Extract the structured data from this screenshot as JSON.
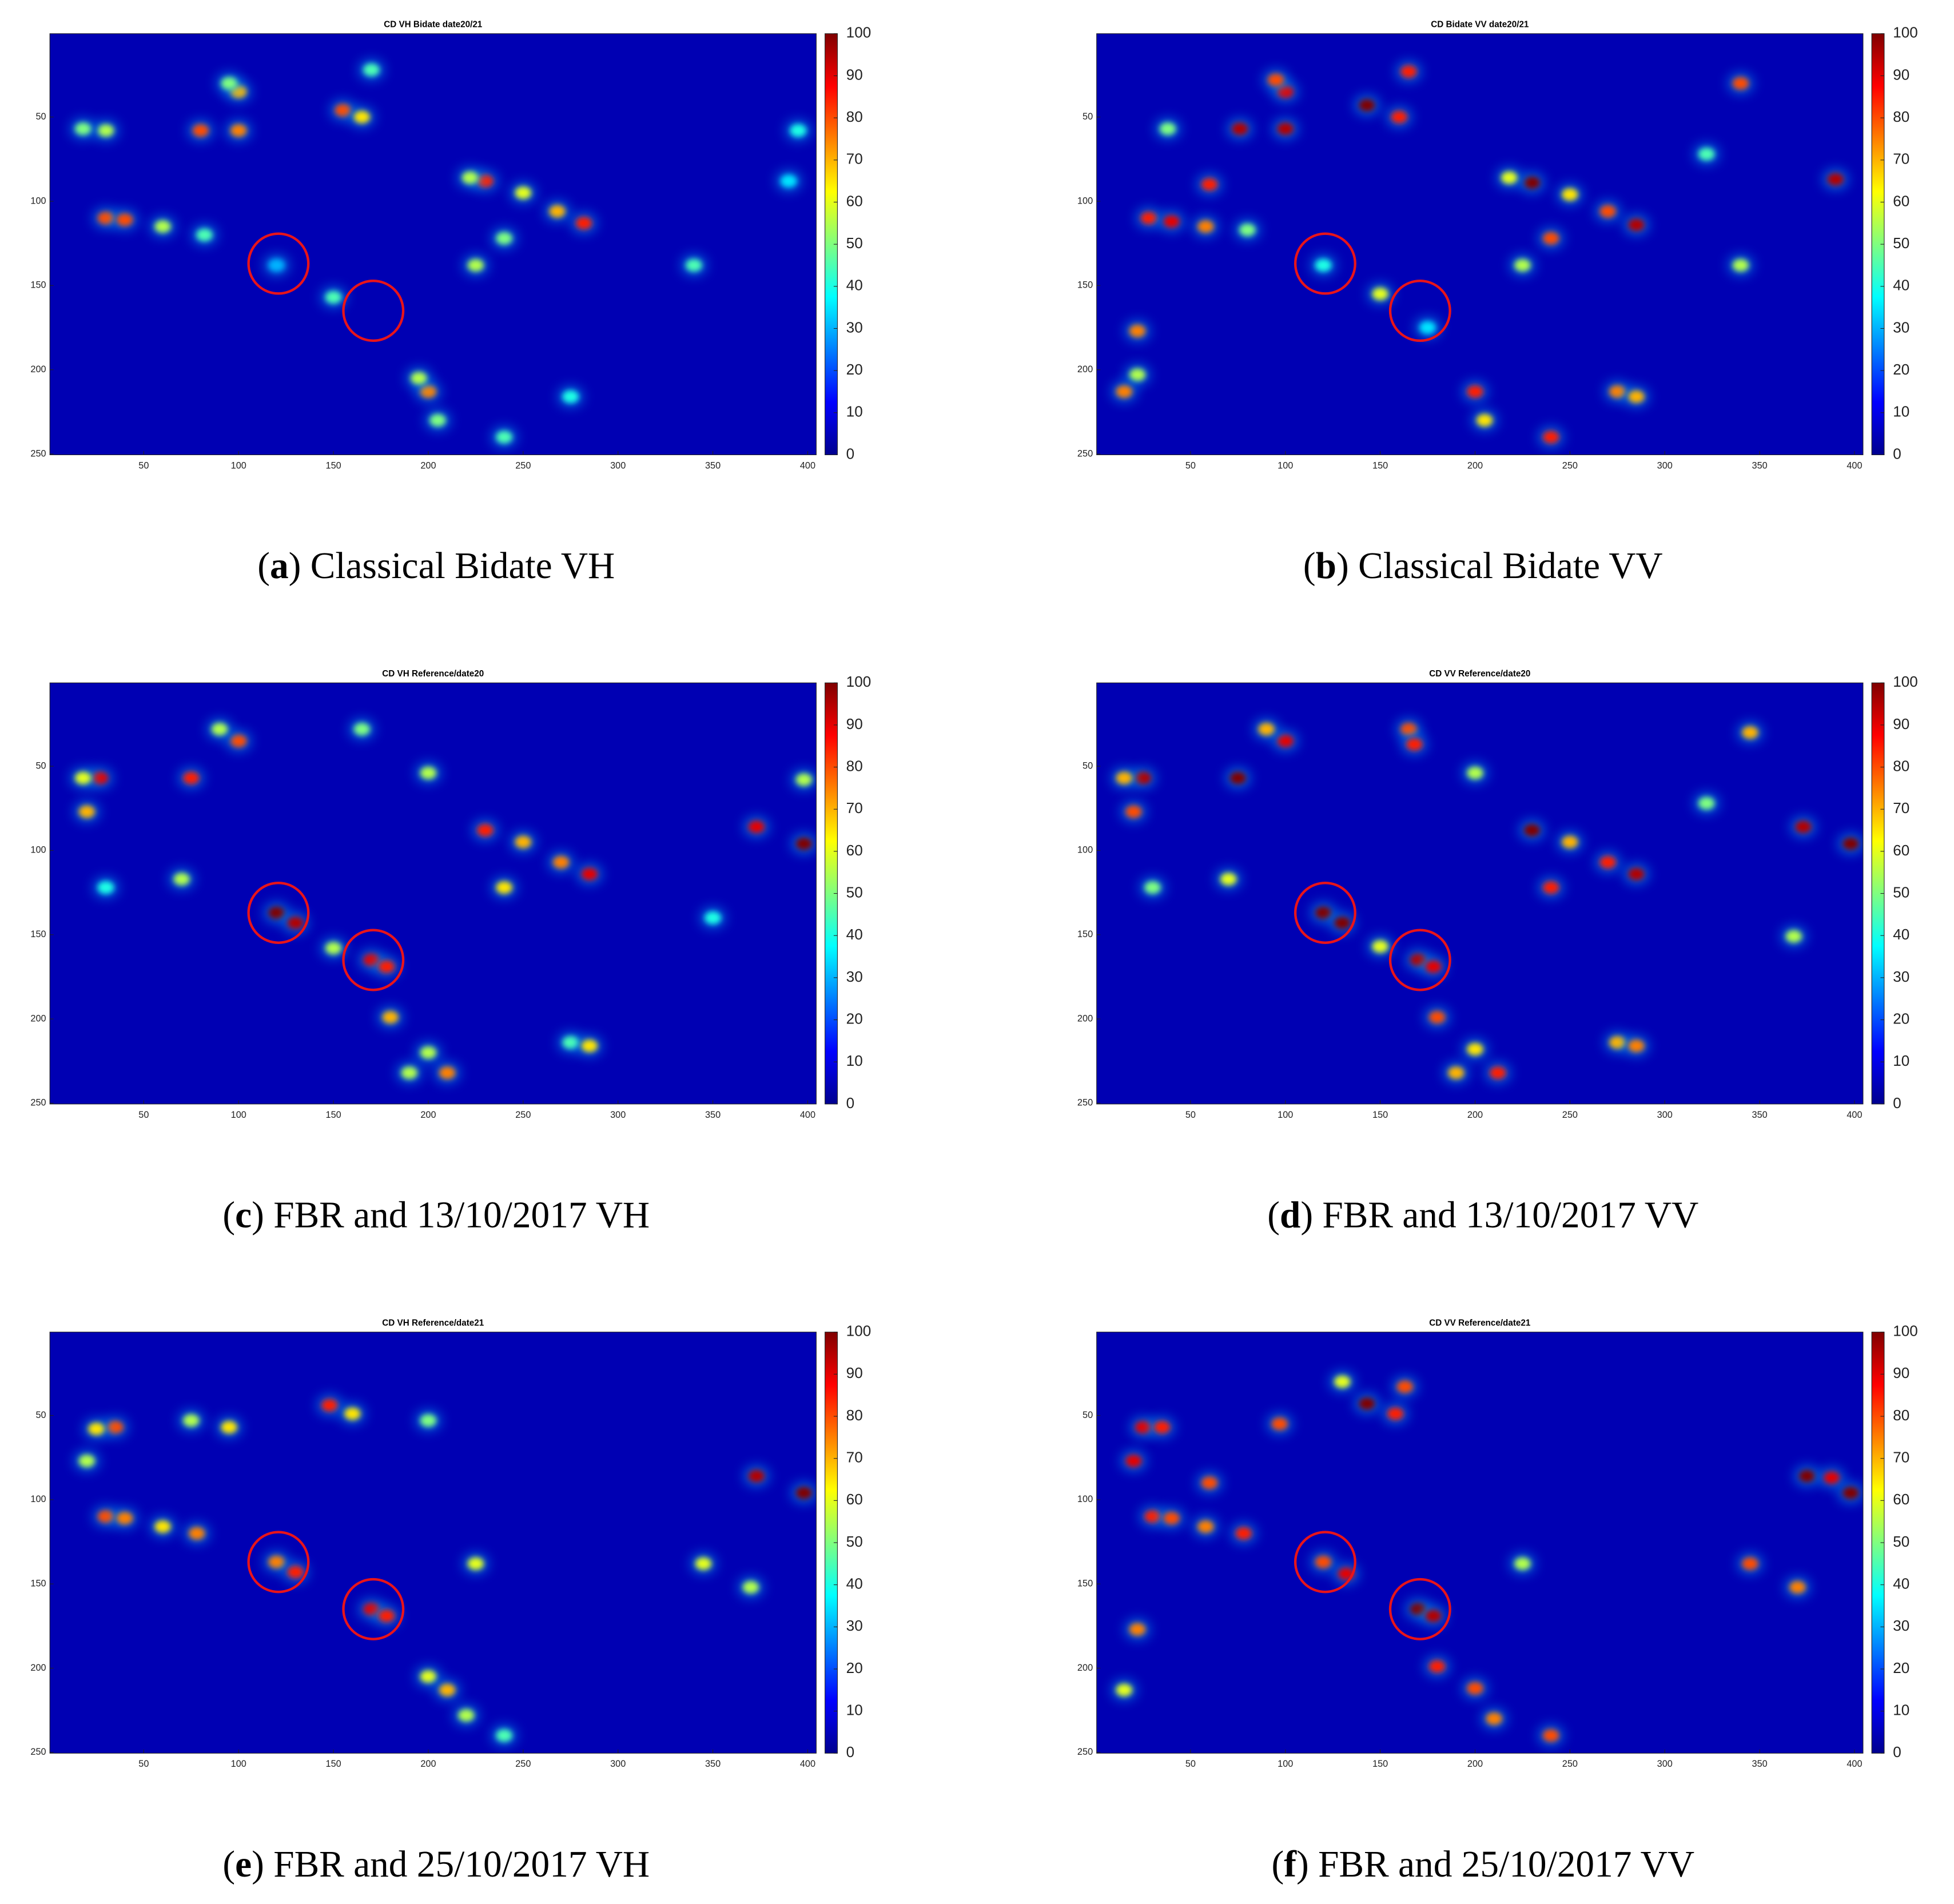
{
  "chart_data": [
    {
      "type": "heatmap",
      "title": "CD VH Bidate date20/21",
      "panel": "a",
      "caption": "Classical Bidate VH",
      "colormap": "jet",
      "xlim": [
        0.5,
        404.5
      ],
      "ylim": [
        0.5,
        250.5
      ],
      "xticks": [
        50,
        100,
        150,
        200,
        250,
        300,
        350,
        400
      ],
      "yticks": [
        50,
        100,
        150,
        200,
        250
      ],
      "clim": [
        0,
        100
      ],
      "cticks": [
        0,
        10,
        20,
        30,
        40,
        50,
        60,
        70,
        80,
        90,
        100
      ],
      "spots": [
        [
          100,
          58,
          75
        ],
        [
          80,
          58,
          80
        ],
        [
          30,
          58,
          55
        ],
        [
          18,
          57,
          50
        ],
        [
          100,
          35,
          70
        ],
        [
          95,
          30,
          50
        ],
        [
          155,
          46,
          80
        ],
        [
          165,
          50,
          65
        ],
        [
          170,
          22,
          45
        ],
        [
          230,
          88,
          85
        ],
        [
          222,
          86,
          55
        ],
        [
          250,
          95,
          60
        ],
        [
          268,
          106,
          70
        ],
        [
          282,
          113,
          85
        ],
        [
          30,
          110,
          80
        ],
        [
          40,
          111,
          80
        ],
        [
          60,
          115,
          55
        ],
        [
          82,
          120,
          45
        ],
        [
          225,
          138,
          55
        ],
        [
          240,
          122,
          50
        ],
        [
          120,
          138,
          30
        ],
        [
          150,
          157,
          45
        ],
        [
          200,
          213,
          75
        ],
        [
          195,
          205,
          55
        ],
        [
          205,
          230,
          50
        ],
        [
          240,
          240,
          45
        ],
        [
          340,
          138,
          45
        ],
        [
          395,
          58,
          40
        ],
        [
          390,
          88,
          35
        ],
        [
          275,
          216,
          40
        ]
      ],
      "circles": [
        [
          121,
          137
        ],
        [
          171,
          165
        ]
      ]
    },
    {
      "type": "heatmap",
      "title": "CD Bidate VV date20/21",
      "panel": "b",
      "caption": "Classical Bidate VV",
      "colormap": "jet",
      "xlim": [
        0.5,
        404.5
      ],
      "ylim": [
        0.5,
        250.5
      ],
      "xticks": [
        50,
        100,
        150,
        200,
        250,
        300,
        350,
        400
      ],
      "yticks": [
        50,
        100,
        150,
        200,
        250
      ],
      "clim": [
        0,
        100
      ],
      "cticks": [
        0,
        10,
        20,
        30,
        40,
        50,
        60,
        70,
        80,
        90,
        100
      ],
      "spots": [
        [
          100,
          57,
          95
        ],
        [
          76,
          57,
          95
        ],
        [
          38,
          57,
          50
        ],
        [
          100,
          35,
          90
        ],
        [
          95,
          28,
          80
        ],
        [
          143,
          43,
          100
        ],
        [
          160,
          50,
          85
        ],
        [
          165,
          23,
          85
        ],
        [
          60,
          90,
          85
        ],
        [
          230,
          89,
          100
        ],
        [
          218,
          86,
          60
        ],
        [
          250,
          96,
          65
        ],
        [
          270,
          106,
          80
        ],
        [
          285,
          114,
          95
        ],
        [
          240,
          122,
          80
        ],
        [
          28,
          110,
          85
        ],
        [
          40,
          112,
          90
        ],
        [
          58,
          115,
          75
        ],
        [
          80,
          117,
          50
        ],
        [
          225,
          138,
          55
        ],
        [
          120,
          138,
          40
        ],
        [
          150,
          155,
          60
        ],
        [
          175,
          175,
          35
        ],
        [
          22,
          177,
          75
        ],
        [
          22,
          203,
          55
        ],
        [
          15,
          213,
          75
        ],
        [
          200,
          213,
          85
        ],
        [
          205,
          230,
          65
        ],
        [
          240,
          240,
          85
        ],
        [
          275,
          213,
          75
        ],
        [
          285,
          216,
          70
        ],
        [
          340,
          138,
          55
        ],
        [
          390,
          87,
          95
        ],
        [
          340,
          30,
          80
        ],
        [
          322,
          72,
          45
        ]
      ],
      "circles": [
        [
          121,
          137
        ],
        [
          171,
          165
        ]
      ]
    },
    {
      "type": "heatmap",
      "title": "CD VH Reference/date20",
      "panel": "c",
      "caption": "FBR and 13/10/2017 VH",
      "colormap": "jet",
      "xlim": [
        0.5,
        404.5
      ],
      "ylim": [
        0.5,
        250.5
      ],
      "xticks": [
        50,
        100,
        150,
        200,
        250,
        300,
        350,
        400
      ],
      "yticks": [
        50,
        100,
        150,
        200,
        250
      ],
      "clim": [
        0,
        100
      ],
      "cticks": [
        0,
        10,
        20,
        30,
        40,
        50,
        60,
        70,
        80,
        90,
        100
      ],
      "spots": [
        [
          27,
          57,
          90
        ],
        [
          18,
          57,
          60
        ],
        [
          75,
          57,
          85
        ],
        [
          20,
          77,
          70
        ],
        [
          100,
          35,
          80
        ],
        [
          90,
          28,
          55
        ],
        [
          165,
          28,
          50
        ],
        [
          200,
          54,
          55
        ],
        [
          230,
          88,
          85
        ],
        [
          250,
          95,
          70
        ],
        [
          270,
          107,
          75
        ],
        [
          285,
          114,
          90
        ],
        [
          240,
          122,
          65
        ],
        [
          70,
          117,
          55
        ],
        [
          30,
          122,
          40
        ],
        [
          120,
          137,
          100
        ],
        [
          130,
          143,
          95
        ],
        [
          150,
          158,
          55
        ],
        [
          170,
          165,
          90
        ],
        [
          178,
          169,
          85
        ],
        [
          180,
          199,
          70
        ],
        [
          200,
          220,
          55
        ],
        [
          210,
          232,
          75
        ],
        [
          190,
          232,
          55
        ],
        [
          275,
          214,
          45
        ],
        [
          285,
          216,
          65
        ],
        [
          373,
          86,
          90
        ],
        [
          398,
          96,
          100
        ],
        [
          398,
          58,
          55
        ],
        [
          350,
          140,
          40
        ]
      ],
      "circles": [
        [
          121,
          137
        ],
        [
          171,
          165
        ]
      ]
    },
    {
      "type": "heatmap",
      "title": "CD VV Reference/date20",
      "panel": "d",
      "caption": "FBR and 13/10/2017 VV",
      "colormap": "jet",
      "xlim": [
        0.5,
        404.5
      ],
      "ylim": [
        0.5,
        250.5
      ],
      "xticks": [
        50,
        100,
        150,
        200,
        250,
        300,
        350,
        400
      ],
      "yticks": [
        50,
        100,
        150,
        200,
        250
      ],
      "clim": [
        0,
        100
      ],
      "cticks": [
        0,
        10,
        20,
        30,
        40,
        50,
        60,
        70,
        80,
        90,
        100
      ],
      "spots": [
        [
          25,
          57,
          95
        ],
        [
          15,
          57,
          70
        ],
        [
          75,
          57,
          100
        ],
        [
          20,
          77,
          80
        ],
        [
          100,
          35,
          90
        ],
        [
          90,
          28,
          70
        ],
        [
          165,
          28,
          80
        ],
        [
          168,
          37,
          85
        ],
        [
          200,
          54,
          55
        ],
        [
          230,
          88,
          100
        ],
        [
          250,
          95,
          70
        ],
        [
          270,
          107,
          85
        ],
        [
          285,
          114,
          95
        ],
        [
          240,
          122,
          85
        ],
        [
          70,
          117,
          60
        ],
        [
          30,
          122,
          50
        ],
        [
          120,
          137,
          100
        ],
        [
          130,
          143,
          100
        ],
        [
          150,
          157,
          60
        ],
        [
          170,
          165,
          95
        ],
        [
          178,
          169,
          90
        ],
        [
          180,
          199,
          80
        ],
        [
          200,
          218,
          65
        ],
        [
          212,
          232,
          85
        ],
        [
          190,
          232,
          70
        ],
        [
          275,
          214,
          70
        ],
        [
          285,
          216,
          75
        ],
        [
          373,
          86,
          95
        ],
        [
          398,
          96,
          100
        ],
        [
          345,
          30,
          70
        ],
        [
          322,
          72,
          50
        ],
        [
          368,
          151,
          55
        ]
      ],
      "circles": [
        [
          121,
          137
        ],
        [
          171,
          165
        ]
      ]
    },
    {
      "type": "heatmap",
      "title": "CD VH Reference/date21",
      "panel": "e",
      "caption": "FBR and 25/10/2017 VH",
      "colormap": "jet",
      "xlim": [
        0.5,
        404.5
      ],
      "ylim": [
        0.5,
        250.5
      ],
      "xticks": [
        50,
        100,
        150,
        200,
        250,
        300,
        350,
        400
      ],
      "yticks": [
        50,
        100,
        150,
        200,
        250
      ],
      "clim": [
        0,
        100
      ],
      "cticks": [
        0,
        10,
        20,
        30,
        40,
        50,
        60,
        70,
        80,
        90,
        100
      ],
      "spots": [
        [
          35,
          57,
          80
        ],
        [
          25,
          58,
          65
        ],
        [
          95,
          57,
          65
        ],
        [
          75,
          53,
          55
        ],
        [
          20,
          77,
          55
        ],
        [
          148,
          44,
          85
        ],
        [
          160,
          49,
          65
        ],
        [
          200,
          53,
          50
        ],
        [
          30,
          110,
          80
        ],
        [
          40,
          111,
          75
        ],
        [
          60,
          116,
          65
        ],
        [
          78,
          120,
          75
        ],
        [
          120,
          137,
          75
        ],
        [
          130,
          143,
          85
        ],
        [
          170,
          165,
          90
        ],
        [
          178,
          169,
          85
        ],
        [
          200,
          205,
          60
        ],
        [
          210,
          213,
          70
        ],
        [
          220,
          228,
          55
        ],
        [
          225,
          138,
          60
        ],
        [
          240,
          240,
          45
        ],
        [
          345,
          138,
          60
        ],
        [
          370,
          152,
          55
        ],
        [
          373,
          86,
          95
        ],
        [
          398,
          96,
          100
        ]
      ],
      "circles": [
        [
          121,
          137
        ],
        [
          171,
          165
        ]
      ]
    },
    {
      "type": "heatmap",
      "title": "CD VV Reference/date21",
      "panel": "f",
      "caption": "FBR and 25/10/2017 VV",
      "colormap": "jet",
      "xlim": [
        0.5,
        404.5
      ],
      "ylim": [
        0.5,
        250.5
      ],
      "xticks": [
        50,
        100,
        150,
        200,
        250,
        300,
        350,
        400
      ],
      "yticks": [
        50,
        100,
        150,
        200,
        250
      ],
      "clim": [
        0,
        100
      ],
      "cticks": [
        0,
        10,
        20,
        30,
        40,
        50,
        60,
        70,
        80,
        90,
        100
      ],
      "spots": [
        [
          25,
          57,
          90
        ],
        [
          35,
          57,
          85
        ],
        [
          97,
          55,
          80
        ],
        [
          20,
          77,
          90
        ],
        [
          143,
          43,
          100
        ],
        [
          158,
          49,
          85
        ],
        [
          163,
          33,
          80
        ],
        [
          130,
          30,
          60
        ],
        [
          60,
          90,
          80
        ],
        [
          30,
          110,
          85
        ],
        [
          40,
          111,
          80
        ],
        [
          58,
          116,
          75
        ],
        [
          78,
          120,
          85
        ],
        [
          120,
          137,
          80
        ],
        [
          132,
          144,
          90
        ],
        [
          170,
          165,
          100
        ],
        [
          178,
          169,
          95
        ],
        [
          180,
          199,
          85
        ],
        [
          200,
          212,
          80
        ],
        [
          210,
          230,
          75
        ],
        [
          22,
          177,
          75
        ],
        [
          15,
          213,
          60
        ],
        [
          240,
          240,
          80
        ],
        [
          225,
          138,
          55
        ],
        [
          345,
          138,
          80
        ],
        [
          370,
          152,
          75
        ],
        [
          375,
          86,
          100
        ],
        [
          388,
          87,
          90
        ],
        [
          398,
          96,
          100
        ]
      ],
      "circles": [
        [
          121,
          137
        ],
        [
          171,
          165
        ]
      ]
    }
  ]
}
